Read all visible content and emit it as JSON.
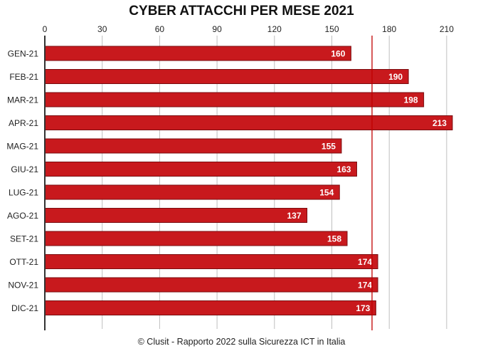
{
  "chart_data": {
    "type": "bar",
    "orientation": "horizontal",
    "title": "CYBER ATTACCHI PER MESE 2021",
    "categories": [
      "GEN-21",
      "FEB-21",
      "MAR-21",
      "APR-21",
      "MAG-21",
      "GIU-21",
      "LUG-21",
      "AGO-21",
      "SET-21",
      "OTT-21",
      "NOV-21",
      "DIC-21"
    ],
    "values": [
      160,
      190,
      198,
      213,
      155,
      163,
      154,
      137,
      158,
      174,
      174,
      173
    ],
    "x_ticks": [
      0,
      30,
      60,
      90,
      120,
      150,
      180,
      210
    ],
    "xlim": [
      0,
      230
    ],
    "x_axis_position": "top",
    "grid": true,
    "reference_line": 171,
    "xlabel": "",
    "ylabel": "",
    "colors": {
      "bar": "#c8191d",
      "bar_edge": "#7a0c0f",
      "grid": "#bfbfbf",
      "reference": "#c00000",
      "label": "#ffffff"
    }
  },
  "footer": "© Clusit - Rapporto 2022 sulla Sicurezza ICT in Italia"
}
